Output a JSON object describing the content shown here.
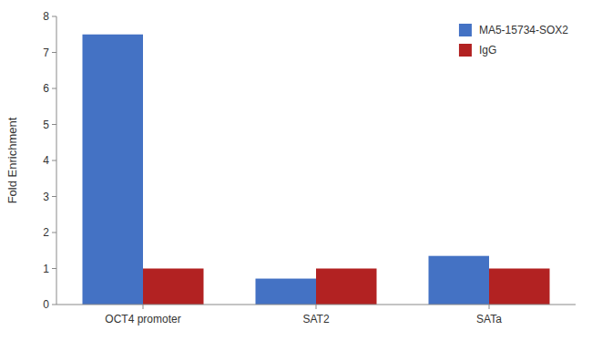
{
  "chart_data": {
    "type": "bar",
    "categories": [
      "OCT4 promoter",
      "SAT2",
      "SATa"
    ],
    "series": [
      {
        "name": "MA5-15734-SOX2",
        "color": "#4472C4",
        "values": [
          7.5,
          0.72,
          1.35
        ]
      },
      {
        "name": "IgG",
        "color": "#B22222",
        "values": [
          1.0,
          1.0,
          1.0
        ]
      }
    ],
    "ylabel": "Fold Enrichment",
    "ylim": [
      0,
      8
    ],
    "yticks": [
      0,
      1,
      2,
      3,
      4,
      5,
      6,
      7,
      8
    ],
    "grid": false,
    "legend": "upper right"
  }
}
